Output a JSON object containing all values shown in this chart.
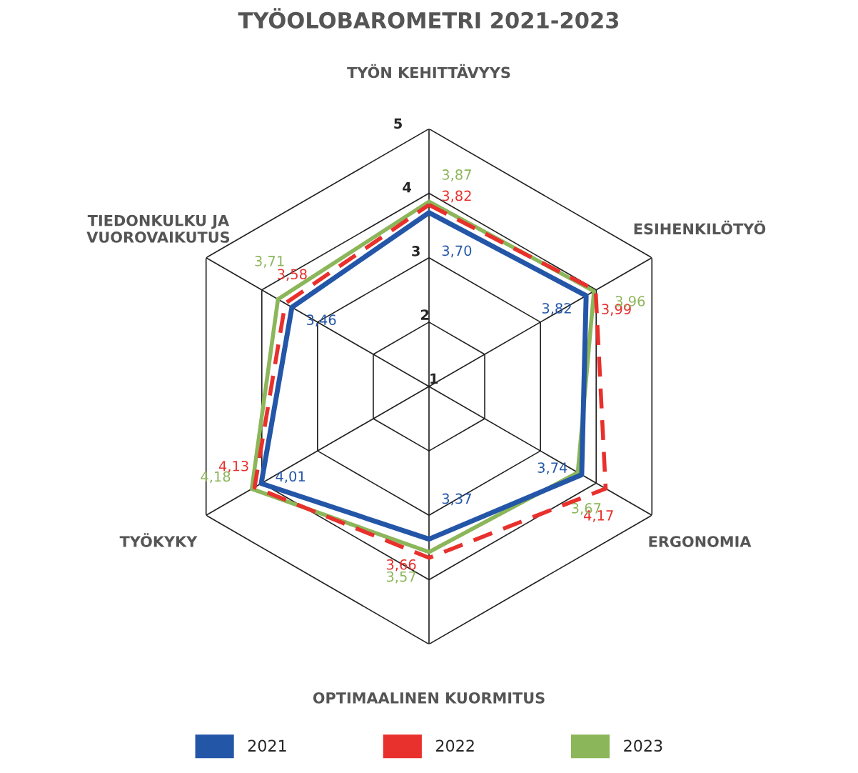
{
  "chart_data": {
    "type": "radar",
    "title": "TYÖOLOBAROMETRI 2021-2023",
    "categories": [
      "TYÖN KEHITTÄVYYS",
      "ESIHENKILÖTYÖ",
      "ERGONOMIA",
      "OPTIMAALINEN KUORMITUS",
      "TYÖKYKY",
      "TIEDONKULKU JA\nVUOROVAIKUTUS"
    ],
    "ylim": [
      1,
      5
    ],
    "yticks": [
      1,
      2,
      3,
      4,
      5
    ],
    "grid": true,
    "legend": "bottom",
    "marker": "none",
    "series": [
      {
        "name": "2021",
        "color": "#2456a8",
        "line_style": "solid",
        "values": [
          3.7,
          3.82,
          3.74,
          3.37,
          4.01,
          3.46
        ],
        "value_labels": [
          "3,70",
          "3,82",
          "3,74",
          "3,37",
          "4,01",
          "3,46"
        ]
      },
      {
        "name": "2022",
        "color": "#e8302c",
        "line_style": "dashed",
        "values": [
          3.82,
          3.99,
          4.17,
          3.66,
          4.13,
          3.58
        ],
        "value_labels": [
          "3,82",
          "3,99",
          "4,17",
          "3,66",
          "4,13",
          "3,58"
        ]
      },
      {
        "name": "2023",
        "color": "#8cb65a",
        "line_style": "solid",
        "values": [
          3.87,
          3.96,
          3.67,
          3.57,
          4.18,
          3.71
        ],
        "value_labels": [
          "3,87",
          "3,96",
          "3,67",
          "3,57",
          "4,18",
          "3,71"
        ]
      }
    ]
  }
}
